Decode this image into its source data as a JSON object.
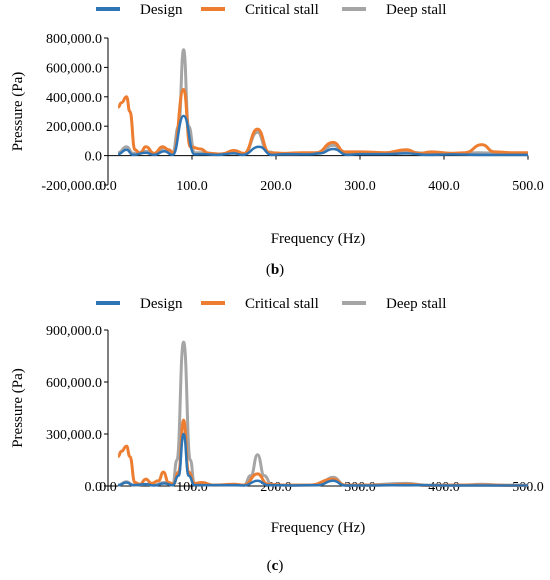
{
  "colors": {
    "design": "#2e75b6",
    "critical": "#ed7d31",
    "deep": "#a5a5a5"
  },
  "chart_data": [
    {
      "type": "line",
      "panel": "b",
      "legend_position": "top",
      "xlabel": "Frequency (Hz)",
      "ylabel": "Pressure (Pa)",
      "xlim": [
        0,
        500
      ],
      "ylim": [
        -200000,
        800000
      ],
      "x_ticks": [
        "0.0",
        "100.0",
        "200.0",
        "300.0",
        "400.0",
        "500.0"
      ],
      "y_ticks": [
        "-200,000.0",
        "0.0",
        "200,000.0",
        "400,000.0",
        "600,000.0",
        "800,000.0"
      ],
      "series": [
        {
          "name": "Design",
          "key": "design",
          "points": [
            [
              12,
              10000
            ],
            [
              22,
              40000
            ],
            [
              30,
              5000
            ],
            [
              45,
              20000
            ],
            [
              55,
              5000
            ],
            [
              67,
              30000
            ],
            [
              77,
              5000
            ],
            [
              90,
              270000
            ],
            [
              103,
              8000
            ],
            [
              112,
              10000
            ],
            [
              130,
              5000
            ],
            [
              150,
              15000
            ],
            [
              160,
              5000
            ],
            [
              180,
              60000
            ],
            [
              195,
              5000
            ],
            [
              212,
              10000
            ],
            [
              240,
              8000
            ],
            [
              252,
              15000
            ],
            [
              268,
              45000
            ],
            [
              285,
              5000
            ],
            [
              300,
              10000
            ],
            [
              330,
              10000
            ],
            [
              355,
              15000
            ],
            [
              380,
              5000
            ],
            [
              410,
              8000
            ],
            [
              445,
              5000
            ],
            [
              470,
              5000
            ],
            [
              500,
              5000
            ]
          ]
        },
        {
          "name": "Critical stall",
          "key": "critical",
          "points": [
            [
              12,
              330000
            ],
            [
              16,
              360000
            ],
            [
              22,
              400000
            ],
            [
              26,
              300000
            ],
            [
              32,
              40000
            ],
            [
              38,
              15000
            ],
            [
              45,
              60000
            ],
            [
              55,
              15000
            ],
            [
              65,
              60000
            ],
            [
              72,
              40000
            ],
            [
              78,
              20000
            ],
            [
              90,
              450000
            ],
            [
              98,
              60000
            ],
            [
              110,
              45000
            ],
            [
              120,
              15000
            ],
            [
              135,
              10000
            ],
            [
              150,
              35000
            ],
            [
              162,
              15000
            ],
            [
              178,
              180000
            ],
            [
              192,
              20000
            ],
            [
              210,
              15000
            ],
            [
              230,
              20000
            ],
            [
              248,
              20000
            ],
            [
              268,
              90000
            ],
            [
              282,
              25000
            ],
            [
              300,
              25000
            ],
            [
              330,
              20000
            ],
            [
              355,
              40000
            ],
            [
              370,
              15000
            ],
            [
              385,
              25000
            ],
            [
              410,
              15000
            ],
            [
              425,
              20000
            ],
            [
              445,
              75000
            ],
            [
              460,
              25000
            ],
            [
              480,
              20000
            ],
            [
              500,
              20000
            ]
          ]
        },
        {
          "name": "Deep stall",
          "key": "deep",
          "points": [
            [
              12,
              20000
            ],
            [
              22,
              60000
            ],
            [
              30,
              15000
            ],
            [
              45,
              30000
            ],
            [
              55,
              15000
            ],
            [
              67,
              50000
            ],
            [
              77,
              15000
            ],
            [
              84,
              200000
            ],
            [
              90,
              720000
            ],
            [
              96,
              200000
            ],
            [
              103,
              20000
            ],
            [
              115,
              20000
            ],
            [
              130,
              10000
            ],
            [
              150,
              20000
            ],
            [
              162,
              10000
            ],
            [
              178,
              160000
            ],
            [
              190,
              25000
            ],
            [
              205,
              10000
            ],
            [
              225,
              10000
            ],
            [
              250,
              15000
            ],
            [
              268,
              70000
            ],
            [
              282,
              20000
            ],
            [
              300,
              15000
            ],
            [
              330,
              15000
            ],
            [
              355,
              25000
            ],
            [
              380,
              15000
            ],
            [
              410,
              15000
            ],
            [
              440,
              20000
            ],
            [
              470,
              15000
            ],
            [
              500,
              15000
            ]
          ]
        }
      ]
    },
    {
      "type": "line",
      "panel": "c",
      "legend_position": "top",
      "xlabel": "Frequency (Hz)",
      "ylabel": "Pressure (Pa)",
      "xlim": [
        0,
        500
      ],
      "ylim": [
        0,
        900000
      ],
      "x_ticks": [
        "0.0",
        "100.0",
        "200.0",
        "300.0",
        "400.0",
        "500.0"
      ],
      "y_ticks": [
        "0.0",
        "300,000.0",
        "600,000.0",
        "900,000.0"
      ],
      "series": [
        {
          "name": "Design",
          "key": "design",
          "points": [
            [
              12,
              5000
            ],
            [
              22,
              20000
            ],
            [
              30,
              5000
            ],
            [
              45,
              10000
            ],
            [
              55,
              3000
            ],
            [
              67,
              15000
            ],
            [
              77,
              5000
            ],
            [
              84,
              60000
            ],
            [
              90,
              300000
            ],
            [
              96,
              60000
            ],
            [
              103,
              5000
            ],
            [
              120,
              5000
            ],
            [
              150,
              5000
            ],
            [
              162,
              3000
            ],
            [
              178,
              30000
            ],
            [
              190,
              5000
            ],
            [
              220,
              3000
            ],
            [
              250,
              5000
            ],
            [
              268,
              30000
            ],
            [
              282,
              3000
            ],
            [
              300,
              3000
            ],
            [
              355,
              5000
            ],
            [
              400,
              3000
            ],
            [
              450,
              3000
            ],
            [
              500,
              3000
            ]
          ]
        },
        {
          "name": "Critical stall",
          "key": "critical",
          "points": [
            [
              12,
              170000
            ],
            [
              16,
              200000
            ],
            [
              22,
              230000
            ],
            [
              26,
              170000
            ],
            [
              32,
              20000
            ],
            [
              38,
              10000
            ],
            [
              45,
              40000
            ],
            [
              52,
              15000
            ],
            [
              60,
              30000
            ],
            [
              66,
              80000
            ],
            [
              72,
              20000
            ],
            [
              78,
              10000
            ],
            [
              84,
              80000
            ],
            [
              90,
              380000
            ],
            [
              96,
              80000
            ],
            [
              103,
              15000
            ],
            [
              112,
              20000
            ],
            [
              125,
              5000
            ],
            [
              150,
              10000
            ],
            [
              162,
              5000
            ],
            [
              178,
              70000
            ],
            [
              190,
              10000
            ],
            [
              210,
              5000
            ],
            [
              240,
              5000
            ],
            [
              268,
              40000
            ],
            [
              282,
              5000
            ],
            [
              300,
              5000
            ],
            [
              330,
              5000
            ],
            [
              355,
              10000
            ],
            [
              380,
              3000
            ],
            [
              420,
              5000
            ],
            [
              450,
              5000
            ],
            [
              480,
              3000
            ],
            [
              500,
              3000
            ]
          ]
        },
        {
          "name": "Deep stall",
          "key": "deep",
          "points": [
            [
              12,
              5000
            ],
            [
              22,
              25000
            ],
            [
              30,
              5000
            ],
            [
              45,
              10000
            ],
            [
              55,
              5000
            ],
            [
              67,
              20000
            ],
            [
              77,
              5000
            ],
            [
              82,
              150000
            ],
            [
              90,
              830000
            ],
            [
              98,
              150000
            ],
            [
              103,
              10000
            ],
            [
              120,
              5000
            ],
            [
              150,
              5000
            ],
            [
              162,
              5000
            ],
            [
              170,
              60000
            ],
            [
              178,
              180000
            ],
            [
              186,
              60000
            ],
            [
              195,
              5000
            ],
            [
              220,
              5000
            ],
            [
              250,
              5000
            ],
            [
              268,
              50000
            ],
            [
              282,
              5000
            ],
            [
              300,
              5000
            ],
            [
              355,
              15000
            ],
            [
              380,
              5000
            ],
            [
              420,
              5000
            ],
            [
              445,
              10000
            ],
            [
              470,
              5000
            ],
            [
              500,
              5000
            ]
          ]
        }
      ]
    }
  ],
  "captions": {
    "b": "b",
    "c": "c"
  }
}
